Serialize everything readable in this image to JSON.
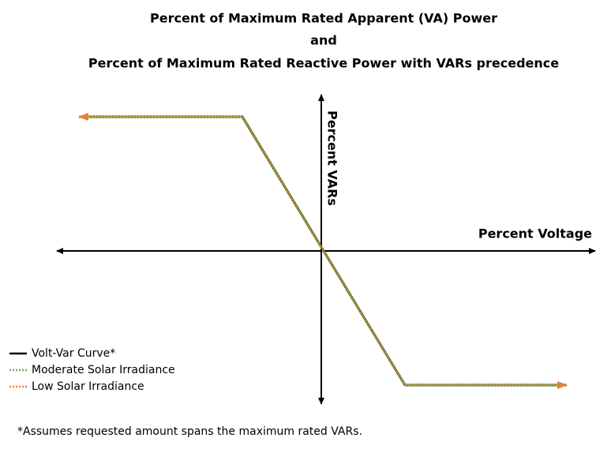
{
  "title": {
    "lines": [
      "Percent of Maximum Rated Apparent (VA) Power",
      "and",
      "Percent of Maximum Rated Reactive Power with VARs precedence"
    ]
  },
  "axes": {
    "y_label": "Percent VARs",
    "x_label": "Percent Voltage"
  },
  "legend": {
    "items": [
      "Volt-Var Curve*",
      "Moderate Solar Irradiance",
      "Low Solar Irradiance"
    ]
  },
  "footnote": "*Assumes requested amount spans the maximum rated VARs."
}
